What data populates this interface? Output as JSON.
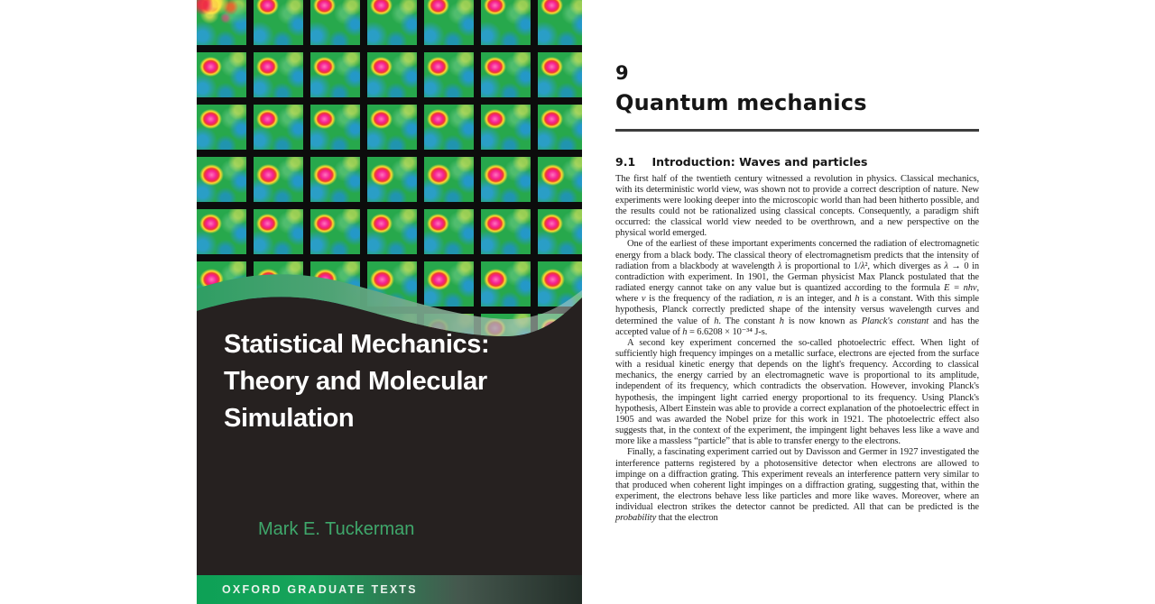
{
  "cover": {
    "title_lines": [
      "Statistical Mechanics:",
      "Theory and Molecular",
      "Simulation"
    ],
    "author": "Mark E. Tuckerman",
    "series": "OXFORD GRADUATE TEXTS",
    "grid": {
      "rows": 7,
      "cols": 7
    },
    "colors": {
      "cell_green": "#27a84c",
      "blob_pink": "#f51f90",
      "blob_ring_yellow": "#ffdc2f",
      "patch_blue": "#2396d6",
      "gutter_black": "#0c0c0c",
      "panel_dark": "#262120",
      "author_green": "#3fa76b",
      "banner_green": "#0da156",
      "wave_green": "#2f9e63",
      "title_white": "#ffffff"
    }
  },
  "page": {
    "chapter_number": "9",
    "chapter_title": "Quantum mechanics",
    "section": {
      "number": "9.1",
      "title": "Introduction: Waves and particles"
    },
    "paragraphs": [
      {
        "indent": false,
        "runs": [
          {
            "t": "The first half of the twentieth century witnessed a revolution in physics. Classical mechanics, with its deterministic world view, was shown not to provide a correct description of nature. New experiments were looking deeper into the microscopic world than had been hitherto possible, and the results could not be rationalized using classical concepts. Consequently, a paradigm shift occurred: the classical world view needed to be overthrown, and a new perspective on the physical world emerged."
          }
        ]
      },
      {
        "indent": true,
        "runs": [
          {
            "t": "One of the earliest of these important experiments concerned the radiation of electromagnetic energy from a black body. The classical theory of electromagnetism predicts that the intensity of radiation from a blackbody at wavelength "
          },
          {
            "t": "λ",
            "i": true
          },
          {
            "t": " is proportional to 1/"
          },
          {
            "t": "λ",
            "i": true
          },
          {
            "t": "², which diverges as "
          },
          {
            "t": "λ",
            "i": true
          },
          {
            "t": " → 0 in contradiction with experiment. In 1901, the German physicist Max Planck postulated that the radiated energy cannot take on any value but is quantized according to the formula "
          },
          {
            "t": "E = nhν",
            "i": true
          },
          {
            "t": ", where "
          },
          {
            "t": "ν",
            "i": true
          },
          {
            "t": " is the frequency of the radiation, "
          },
          {
            "t": "n",
            "i": true
          },
          {
            "t": " is an integer, and "
          },
          {
            "t": "h",
            "i": true
          },
          {
            "t": " is a constant. With this simple hypothesis, Planck correctly predicted shape of the intensity versus wavelength curves and determined the value of "
          },
          {
            "t": "h",
            "i": true
          },
          {
            "t": ". The constant "
          },
          {
            "t": "h",
            "i": true
          },
          {
            "t": " is now known as "
          },
          {
            "t": "Planck's constant",
            "i": true
          },
          {
            "t": " and has the accepted value of "
          },
          {
            "t": "h",
            "i": true
          },
          {
            "t": " = 6.6208 × 10⁻³⁴ J-s."
          }
        ]
      },
      {
        "indent": true,
        "runs": [
          {
            "t": "A second key experiment concerned the so-called photoelectric effect. When light of sufficiently high frequency impinges on a metallic surface, electrons are ejected from the surface with a residual kinetic energy that depends on the light's frequency. According to classical mechanics, the energy carried by an electromagnetic wave is proportional to its amplitude, independent of its frequency, which contradicts the observation. However, invoking Planck's hypothesis, the impingent light carried energy proportional to its frequency. Using Planck's hypothesis, Albert Einstein was able to provide a correct explanation of the photoelectric effect in 1905 and was awarded the Nobel prize for this work in 1921. The photoelectric effect also suggests that, in the context of the experiment, the impingent light behaves less like a wave and more like a massless “particle” that is able to transfer energy to the electrons."
          }
        ]
      },
      {
        "indent": true,
        "runs": [
          {
            "t": "Finally, a fascinating experiment carried out by Davisson and Germer in 1927 investigated the interference patterns registered by a photosensitive detector when electrons are allowed to impinge on a diffraction grating. This experiment reveals an interference pattern very similar to that produced when coherent light impinges on a diffraction grating, suggesting that, within the experiment, the electrons behave less like particles and more like waves. Moreover, where an individual electron strikes the detector cannot be predicted. All that can be predicted is the "
          },
          {
            "t": "probability",
            "i": true
          },
          {
            "t": " that the electron"
          }
        ]
      }
    ]
  }
}
